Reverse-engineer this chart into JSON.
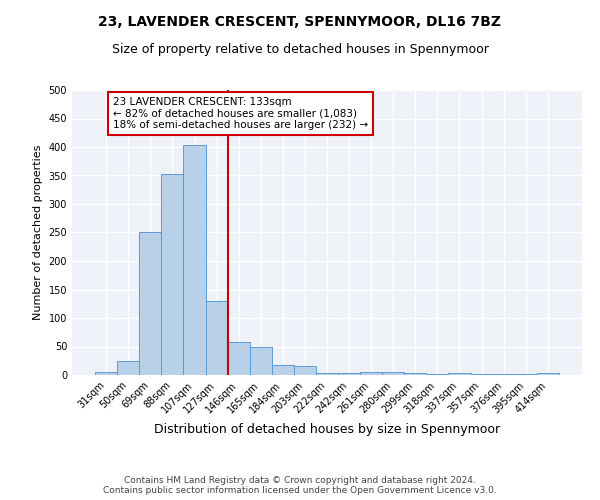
{
  "title": "23, LAVENDER CRESCENT, SPENNYMOOR, DL16 7BZ",
  "subtitle": "Size of property relative to detached houses in Spennymoor",
  "xlabel": "Distribution of detached houses by size in Spennymoor",
  "ylabel": "Number of detached properties",
  "categories": [
    "31sqm",
    "50sqm",
    "69sqm",
    "88sqm",
    "107sqm",
    "127sqm",
    "146sqm",
    "165sqm",
    "184sqm",
    "203sqm",
    "222sqm",
    "242sqm",
    "261sqm",
    "280sqm",
    "299sqm",
    "318sqm",
    "337sqm",
    "357sqm",
    "376sqm",
    "395sqm",
    "414sqm"
  ],
  "values": [
    6,
    25,
    250,
    353,
    403,
    130,
    58,
    50,
    18,
    15,
    4,
    4,
    6,
    6,
    4,
    1,
    4,
    1,
    1,
    1,
    3
  ],
  "bar_color": "#b8d0e8",
  "bar_edge_color": "#5b9bd5",
  "property_line_index": 5.5,
  "annotation_text": "23 LAVENDER CRESCENT: 133sqm\n← 82% of detached houses are smaller (1,083)\n18% of semi-detached houses are larger (232) →",
  "annotation_box_facecolor": "#ffffff",
  "annotation_box_edgecolor": "#cc0000",
  "red_line_color": "#cc0000",
  "background_color": "#eef2f8",
  "grid_color": "#ffffff",
  "ylim": [
    0,
    500
  ],
  "yticks": [
    0,
    50,
    100,
    150,
    200,
    250,
    300,
    350,
    400,
    450,
    500
  ],
  "footer_text": "Contains HM Land Registry data © Crown copyright and database right 2024.\nContains public sector information licensed under the Open Government Licence v3.0.",
  "title_fontsize": 10,
  "subtitle_fontsize": 9,
  "xlabel_fontsize": 9,
  "ylabel_fontsize": 8,
  "tick_fontsize": 7,
  "annotation_fontsize": 7.5,
  "footer_fontsize": 6.5
}
